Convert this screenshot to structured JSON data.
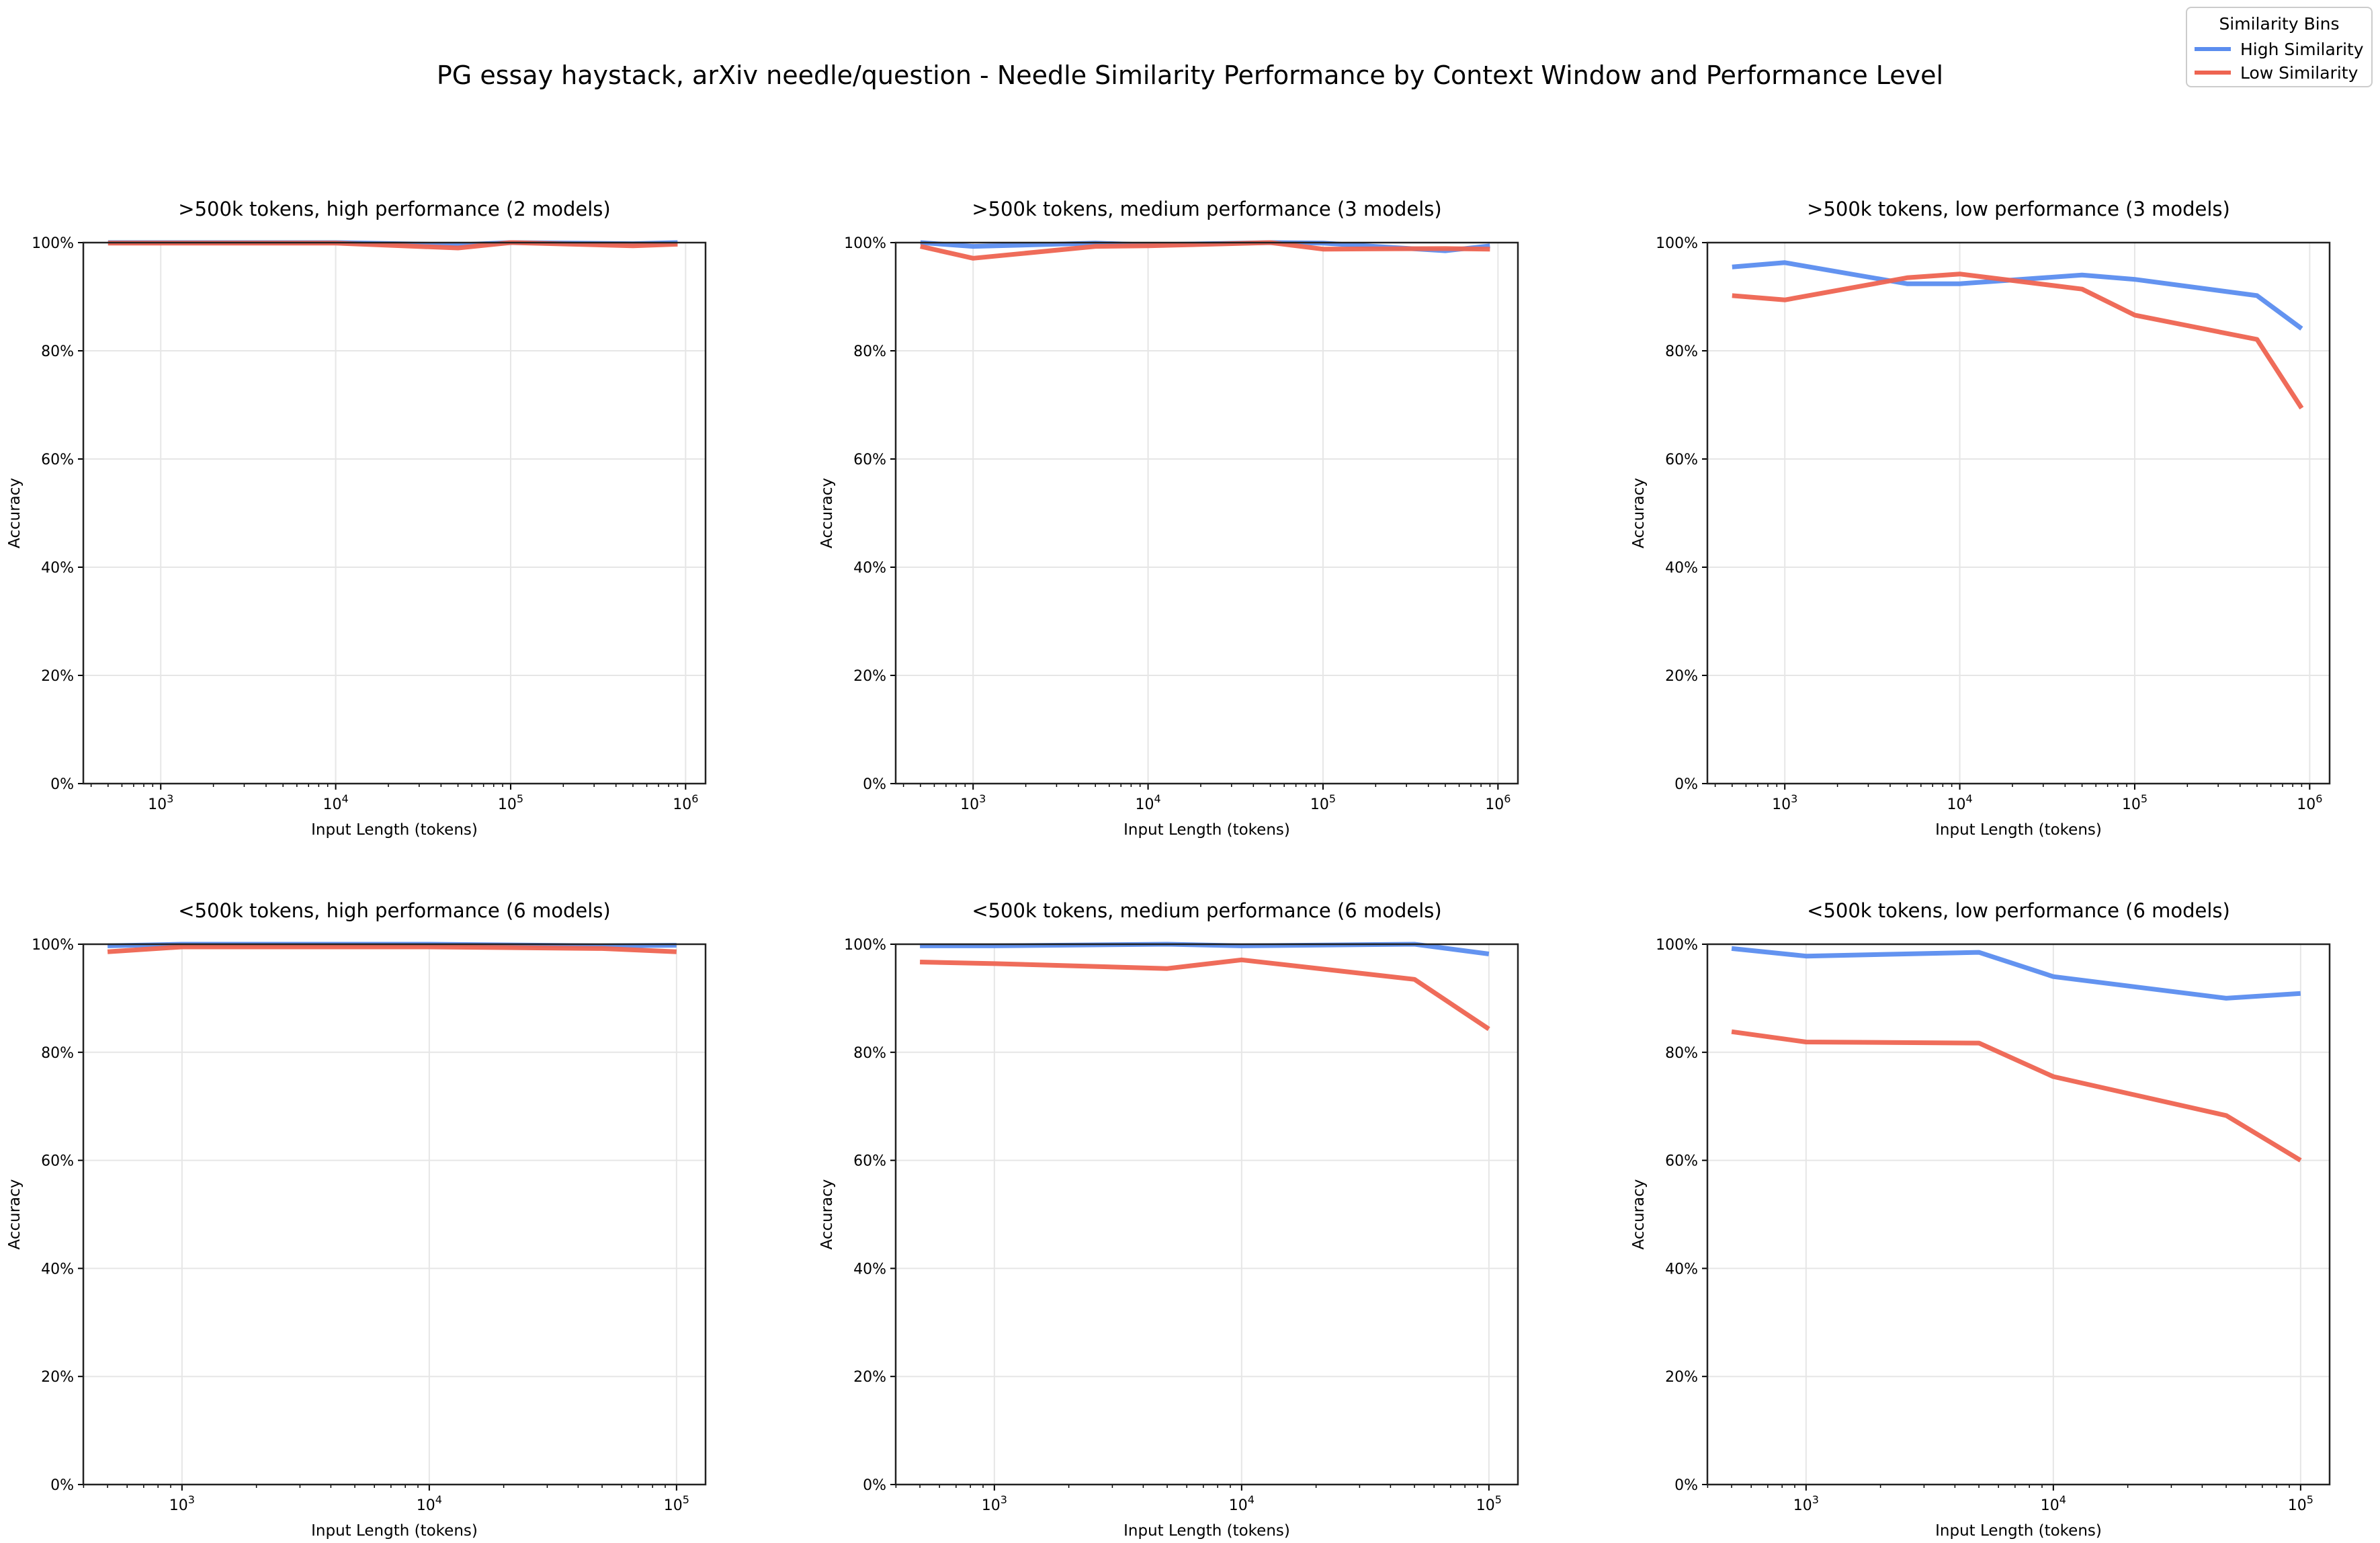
{
  "chart_data": {
    "type": "line",
    "title": "PG essay haystack, arXiv needle/question - Needle Similarity Performance by Context Window and Performance Level",
    "legend": {
      "title": "Similarity Bins",
      "placement": "top-right",
      "entries": [
        {
          "name": "High Similarity",
          "color": "#5b8def"
        },
        {
          "name": "Low Similarity",
          "color": "#ee6451"
        }
      ]
    },
    "panels": [
      {
        "title": ">500k tokens, high performance (2 models)",
        "xlabel": "Input Length (tokens)",
        "ylabel": "Accuracy",
        "xscale": "log",
        "xlim": [
          361,
          1300000
        ],
        "ylim": [
          0,
          100
        ],
        "xticks": [
          {
            "value": 1000,
            "label": "10",
            "exp": "3"
          },
          {
            "value": 10000,
            "label": "10",
            "exp": "4"
          },
          {
            "value": 100000,
            "label": "10",
            "exp": "5"
          },
          {
            "value": 1000000,
            "label": "10",
            "exp": "6"
          }
        ],
        "yticks": [
          "0%",
          "20%",
          "40%",
          "60%",
          "80%",
          "100%"
        ],
        "x": [
          500,
          1000,
          5000,
          10000,
          50000,
          100000,
          500000,
          900000
        ],
        "series": [
          {
            "name": "High Similarity",
            "values": [
              100,
              100,
              100,
              100,
              99.6,
              100,
              99.8,
              100
            ]
          },
          {
            "name": "Low Similarity",
            "values": [
              99.9,
              99.9,
              99.9,
              99.9,
              99.0,
              100,
              99.4,
              99.7
            ]
          }
        ]
      },
      {
        "title": ">500k tokens, medium performance (3 models)",
        "xlabel": "Input Length (tokens)",
        "ylabel": "Accuracy",
        "xscale": "log",
        "xlim": [
          361,
          1300000
        ],
        "ylim": [
          0,
          100
        ],
        "xticks": [
          {
            "value": 1000,
            "label": "10",
            "exp": "3"
          },
          {
            "value": 10000,
            "label": "10",
            "exp": "4"
          },
          {
            "value": 100000,
            "label": "10",
            "exp": "5"
          },
          {
            "value": 1000000,
            "label": "10",
            "exp": "6"
          }
        ],
        "yticks": [
          "0%",
          "20%",
          "40%",
          "60%",
          "80%",
          "100%"
        ],
        "x": [
          500,
          1000,
          5000,
          10000,
          50000,
          100000,
          500000,
          900000
        ],
        "series": [
          {
            "name": "High Similarity",
            "values": [
              100,
              99.3,
              99.9,
              99.6,
              100,
              99.9,
              98.5,
              99.4
            ]
          },
          {
            "name": "Low Similarity",
            "values": [
              99.3,
              97.1,
              99.3,
              99.4,
              100,
              98.8,
              98.9,
              98.8
            ]
          }
        ]
      },
      {
        "title": ">500k tokens, low performance (3 models)",
        "xlabel": "Input Length (tokens)",
        "ylabel": "Accuracy",
        "xscale": "log",
        "xlim": [
          361,
          1300000
        ],
        "ylim": [
          0,
          100
        ],
        "xticks": [
          {
            "value": 1000,
            "label": "10",
            "exp": "3"
          },
          {
            "value": 10000,
            "label": "10",
            "exp": "4"
          },
          {
            "value": 100000,
            "label": "10",
            "exp": "5"
          },
          {
            "value": 1000000,
            "label": "10",
            "exp": "6"
          }
        ],
        "yticks": [
          "0%",
          "20%",
          "40%",
          "60%",
          "80%",
          "100%"
        ],
        "x": [
          500,
          1000,
          5000,
          10000,
          50000,
          100000,
          500000,
          900000
        ],
        "series": [
          {
            "name": "High Similarity",
            "values": [
              95.5,
              96.3,
              92.4,
              92.4,
              94.0,
              93.2,
              90.2,
              84.1
            ]
          },
          {
            "name": "Low Similarity",
            "values": [
              90.2,
              89.4,
              93.5,
              94.2,
              91.4,
              86.6,
              82.1,
              69.4
            ]
          }
        ]
      },
      {
        "title": "<500k tokens, high performance (6 models)",
        "xlabel": "Input Length (tokens)",
        "ylabel": "Accuracy",
        "xscale": "log",
        "xlim": [
          399,
          131000
        ],
        "ylim": [
          0,
          100
        ],
        "xticks": [
          {
            "value": 1000,
            "label": "10",
            "exp": "3"
          },
          {
            "value": 10000,
            "label": "10",
            "exp": "4"
          },
          {
            "value": 100000,
            "label": "10",
            "exp": "5"
          }
        ],
        "yticks": [
          "0%",
          "20%",
          "40%",
          "60%",
          "80%",
          "100%"
        ],
        "x": [
          500,
          1000,
          5000,
          10000,
          50000,
          100000
        ],
        "series": [
          {
            "name": "High Similarity",
            "values": [
              99.7,
              100,
              100,
              100,
              99.7,
              99.8
            ]
          },
          {
            "name": "Low Similarity",
            "values": [
              98.6,
              99.5,
              99.5,
              99.5,
              99.2,
              98.6
            ]
          }
        ]
      },
      {
        "title": "<500k tokens, medium performance (6 models)",
        "xlabel": "Input Length (tokens)",
        "ylabel": "Accuracy",
        "xscale": "log",
        "xlim": [
          399,
          131000
        ],
        "ylim": [
          0,
          100
        ],
        "xticks": [
          {
            "value": 1000,
            "label": "10",
            "exp": "3"
          },
          {
            "value": 10000,
            "label": "10",
            "exp": "4"
          },
          {
            "value": 100000,
            "label": "10",
            "exp": "5"
          }
        ],
        "yticks": [
          "0%",
          "20%",
          "40%",
          "60%",
          "80%",
          "100%"
        ],
        "x": [
          500,
          1000,
          5000,
          10000,
          50000,
          100000
        ],
        "series": [
          {
            "name": "High Similarity",
            "values": [
              99.7,
              99.7,
              100,
              99.7,
              100,
              98.2
            ]
          },
          {
            "name": "Low Similarity",
            "values": [
              96.7,
              96.4,
              95.5,
              97.1,
              93.5,
              84.3
            ]
          }
        ]
      },
      {
        "title": "<500k tokens, low performance (6 models)",
        "xlabel": "Input Length (tokens)",
        "ylabel": "Accuracy",
        "xscale": "log",
        "xlim": [
          399,
          131000
        ],
        "ylim": [
          0,
          100
        ],
        "xticks": [
          {
            "value": 1000,
            "label": "10",
            "exp": "3"
          },
          {
            "value": 10000,
            "label": "10",
            "exp": "4"
          },
          {
            "value": 100000,
            "label": "10",
            "exp": "5"
          }
        ],
        "yticks": [
          "0%",
          "20%",
          "40%",
          "60%",
          "80%",
          "100%"
        ],
        "x": [
          500,
          1000,
          5000,
          10000,
          50000,
          100000
        ],
        "series": [
          {
            "name": "High Similarity",
            "values": [
              99.2,
              97.8,
              98.5,
              94.0,
              90.0,
              90.9
            ]
          },
          {
            "name": "Low Similarity",
            "values": [
              83.8,
              81.9,
              81.7,
              75.5,
              68.3,
              60.0
            ]
          }
        ]
      }
    ]
  }
}
